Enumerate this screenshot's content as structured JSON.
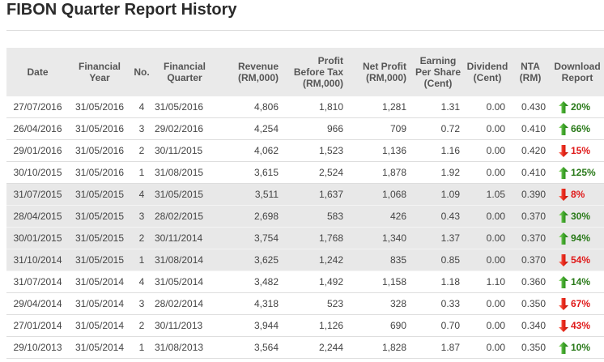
{
  "page": {
    "title": "FIBON Quarter Report History"
  },
  "colors": {
    "up": "#2a7a1a",
    "down": "#e01a1a",
    "header_bg": "#eaeaea",
    "shaded_row_bg": "#e8e8e8"
  },
  "table": {
    "headers": [
      "Date",
      "Financial Year",
      "No.",
      "Financial Quarter",
      "Revenue (RM,000)",
      "Profit Before Tax (RM,000)",
      "Net Profit (RM,000)",
      "Earning Per Share (Cent)",
      "Dividend (Cent)",
      "NTA (RM)",
      "Download Report"
    ],
    "rows": [
      {
        "date": "27/07/2016",
        "fy": "31/05/2016",
        "no": "4",
        "fq": "31/05/2016",
        "revenue": "4,806",
        "pbt": "1,810",
        "np": "1,281",
        "eps": "1.31",
        "div": "0.00",
        "nta": "0.430",
        "change": "20%",
        "dir": "up",
        "arrow": "arrow-up-icon"
      },
      {
        "date": "26/04/2016",
        "fy": "31/05/2016",
        "no": "3",
        "fq": "29/02/2016",
        "revenue": "4,254",
        "pbt": "966",
        "np": "709",
        "eps": "0.72",
        "div": "0.00",
        "nta": "0.410",
        "change": "66%",
        "dir": "up",
        "arrow": "arrow-up-icon"
      },
      {
        "date": "29/01/2016",
        "fy": "31/05/2016",
        "no": "2",
        "fq": "30/11/2015",
        "revenue": "4,062",
        "pbt": "1,523",
        "np": "1,136",
        "eps": "1.16",
        "div": "0.00",
        "nta": "0.420",
        "change": "15%",
        "dir": "down",
        "arrow": "arrow-down-icon"
      },
      {
        "date": "30/10/2015",
        "fy": "31/05/2016",
        "no": "1",
        "fq": "31/08/2015",
        "revenue": "3,615",
        "pbt": "2,524",
        "np": "1,878",
        "eps": "1.92",
        "div": "0.00",
        "nta": "0.410",
        "change": "125%",
        "dir": "up",
        "arrow": "arrow-up-icon"
      },
      {
        "date": "31/07/2015",
        "fy": "31/05/2015",
        "no": "4",
        "fq": "31/05/2015",
        "revenue": "3,511",
        "pbt": "1,637",
        "np": "1,068",
        "eps": "1.09",
        "div": "1.05",
        "nta": "0.390",
        "change": "8%",
        "dir": "down",
        "arrow": "arrow-down-icon"
      },
      {
        "date": "28/04/2015",
        "fy": "31/05/2015",
        "no": "3",
        "fq": "28/02/2015",
        "revenue": "2,698",
        "pbt": "583",
        "np": "426",
        "eps": "0.43",
        "div": "0.00",
        "nta": "0.370",
        "change": "30%",
        "dir": "up",
        "arrow": "arrow-up-icon"
      },
      {
        "date": "30/01/2015",
        "fy": "31/05/2015",
        "no": "2",
        "fq": "30/11/2014",
        "revenue": "3,754",
        "pbt": "1,768",
        "np": "1,340",
        "eps": "1.37",
        "div": "0.00",
        "nta": "0.370",
        "change": "94%",
        "dir": "up",
        "arrow": "arrow-up-icon"
      },
      {
        "date": "31/10/2014",
        "fy": "31/05/2015",
        "no": "1",
        "fq": "31/08/2014",
        "revenue": "3,625",
        "pbt": "1,242",
        "np": "835",
        "eps": "0.85",
        "div": "0.00",
        "nta": "0.370",
        "change": "54%",
        "dir": "down",
        "arrow": "arrow-down-icon"
      },
      {
        "date": "31/07/2014",
        "fy": "31/05/2014",
        "no": "4",
        "fq": "31/05/2014",
        "revenue": "3,482",
        "pbt": "1,492",
        "np": "1,158",
        "eps": "1.18",
        "div": "1.10",
        "nta": "0.360",
        "change": "14%",
        "dir": "up",
        "arrow": "arrow-up-icon"
      },
      {
        "date": "29/04/2014",
        "fy": "31/05/2014",
        "no": "3",
        "fq": "28/02/2014",
        "revenue": "4,318",
        "pbt": "523",
        "np": "328",
        "eps": "0.33",
        "div": "0.00",
        "nta": "0.350",
        "change": "67%",
        "dir": "down",
        "arrow": "arrow-down-icon"
      },
      {
        "date": "27/01/2014",
        "fy": "31/05/2014",
        "no": "2",
        "fq": "30/11/2013",
        "revenue": "3,944",
        "pbt": "1,126",
        "np": "690",
        "eps": "0.70",
        "div": "0.00",
        "nta": "0.340",
        "change": "43%",
        "dir": "down",
        "arrow": "arrow-down-icon"
      },
      {
        "date": "29/10/2013",
        "fy": "31/05/2014",
        "no": "1",
        "fq": "31/08/2013",
        "revenue": "3,564",
        "pbt": "2,244",
        "np": "1,828",
        "eps": "1.87",
        "div": "0.00",
        "nta": "0.350",
        "change": "10%",
        "dir": "up",
        "arrow": "arrow-up-icon"
      }
    ]
  }
}
